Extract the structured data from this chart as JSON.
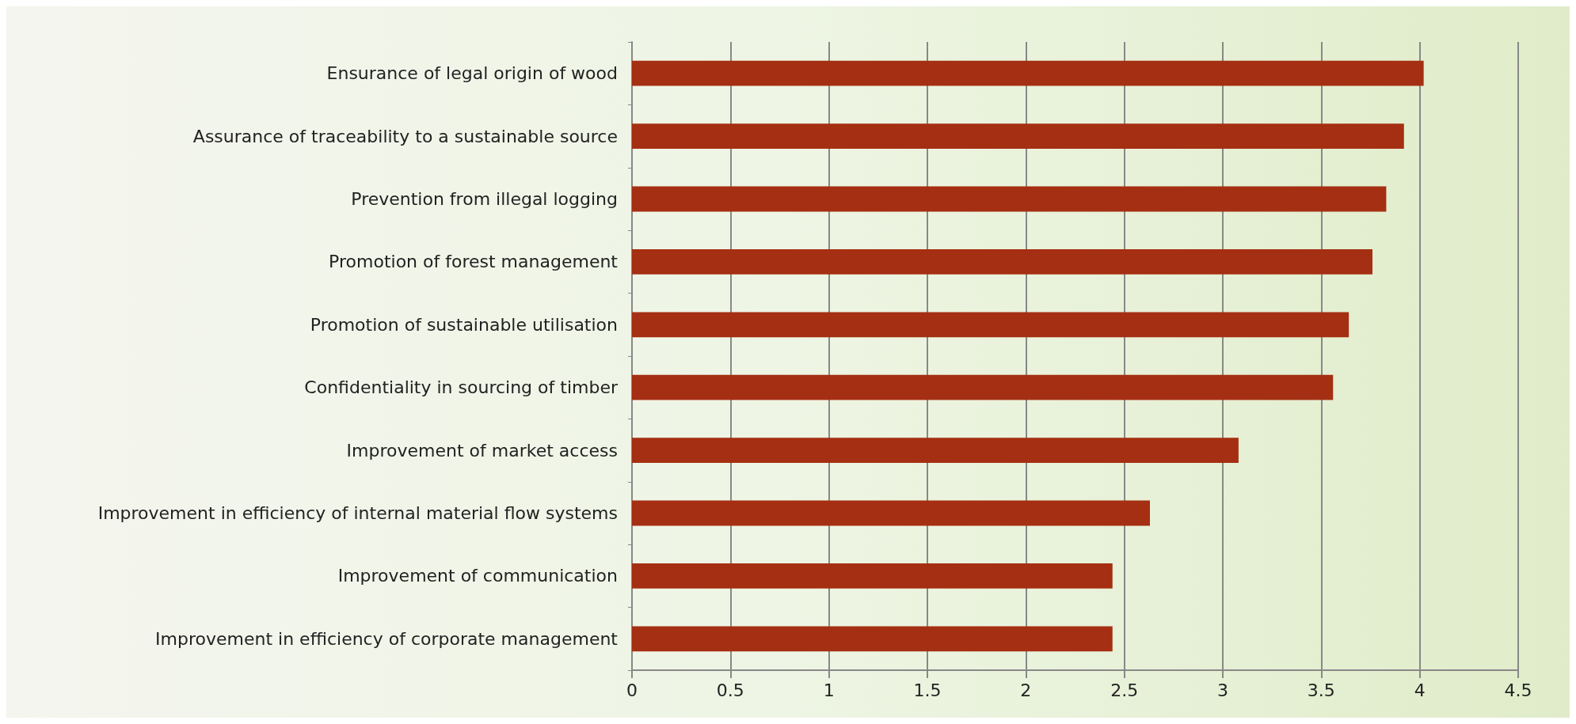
{
  "chart_data": {
    "type": "bar",
    "orientation": "horizontal",
    "categories": [
      "Ensurance of legal origin of wood",
      "Assurance of traceability to a sustainable source",
      "Prevention from illegal logging",
      "Promotion of forest management",
      "Promotion of sustainable utilisation",
      "Confidentiality in sourcing of timber",
      "Improvement of market access",
      "Improvement in efficiency of internal material flow systems",
      "Improvement of communication",
      "Improvement in efficiency of corporate management"
    ],
    "values": [
      4.02,
      3.92,
      3.83,
      3.76,
      3.64,
      3.56,
      3.08,
      2.63,
      2.44,
      2.44
    ],
    "color": "#a52f12",
    "xlim": [
      0,
      4.5
    ],
    "xticks": [
      0,
      0.5,
      1,
      1.5,
      2,
      2.5,
      3,
      3.5,
      4,
      4.5
    ],
    "grid": "x"
  }
}
